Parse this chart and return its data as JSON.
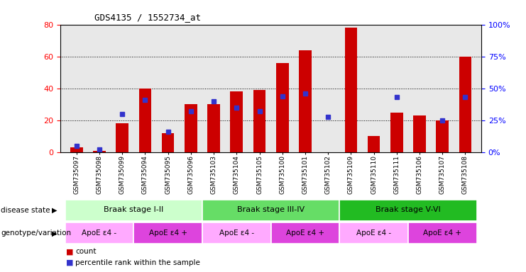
{
  "title": "GDS4135 / 1552734_at",
  "samples": [
    "GSM735097",
    "GSM735098",
    "GSM735099",
    "GSM735094",
    "GSM735095",
    "GSM735096",
    "GSM735103",
    "GSM735104",
    "GSM735105",
    "GSM735100",
    "GSM735101",
    "GSM735102",
    "GSM735109",
    "GSM735110",
    "GSM735111",
    "GSM735106",
    "GSM735107",
    "GSM735108"
  ],
  "counts": [
    3,
    1,
    18,
    40,
    12,
    30,
    30,
    38,
    39,
    56,
    64,
    0,
    78,
    10,
    25,
    23,
    20,
    60
  ],
  "percentiles": [
    5,
    2,
    30,
    41,
    16,
    32,
    40,
    35,
    32,
    44,
    46,
    28,
    0,
    0,
    43,
    0,
    25,
    43
  ],
  "ylim_left": [
    0,
    80
  ],
  "ylim_right": [
    0,
    100
  ],
  "yticks_left": [
    0,
    20,
    40,
    60,
    80
  ],
  "yticks_right": [
    0,
    25,
    50,
    75,
    100
  ],
  "bar_color": "#cc0000",
  "dot_color": "#3333cc",
  "chart_bg": "#e8e8e8",
  "disease_stages": [
    {
      "label": "Braak stage I-II",
      "start": 0,
      "end": 6,
      "color": "#ccffcc"
    },
    {
      "label": "Braak stage III-IV",
      "start": 6,
      "end": 12,
      "color": "#66dd66"
    },
    {
      "label": "Braak stage V-VI",
      "start": 12,
      "end": 18,
      "color": "#22bb22"
    }
  ],
  "genotypes": [
    {
      "label": "ApoE ε4 -",
      "start": 0,
      "end": 3,
      "color": "#ffaaff"
    },
    {
      "label": "ApoE ε4 +",
      "start": 3,
      "end": 6,
      "color": "#dd44dd"
    },
    {
      "label": "ApoE ε4 -",
      "start": 6,
      "end": 9,
      "color": "#ffaaff"
    },
    {
      "label": "ApoE ε4 +",
      "start": 9,
      "end": 12,
      "color": "#dd44dd"
    },
    {
      "label": "ApoE ε4 -",
      "start": 12,
      "end": 15,
      "color": "#ffaaff"
    },
    {
      "label": "ApoE ε4 +",
      "start": 15,
      "end": 18,
      "color": "#dd44dd"
    }
  ],
  "left_label_disease": "disease state",
  "left_label_geno": "genotype/variation",
  "legend_items": [
    {
      "label": "count",
      "color": "#cc0000"
    },
    {
      "label": "percentile rank within the sample",
      "color": "#3333cc"
    }
  ]
}
